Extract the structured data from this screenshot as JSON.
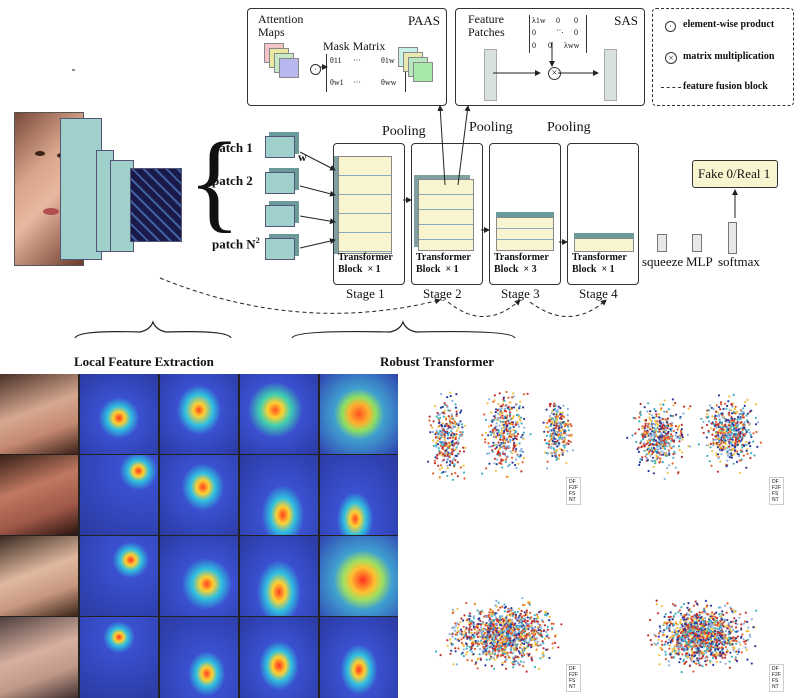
{
  "paas": {
    "title": "PAAS",
    "attention_label": "Attention\nMaps",
    "mask_label": "Mask Matrix",
    "m11": "θ11",
    "m1w": "θ1w",
    "mw1": "θw1",
    "mww": "θww",
    "dots": "···"
  },
  "sas": {
    "title": "SAS",
    "feature_label": "Feature\nPatches",
    "l1": "λ1w",
    "lw": "λww",
    "z": "0"
  },
  "legend_box": {
    "elementwise": "element-wise product",
    "matmul": "matrix multiplication",
    "fusion": "feature fusion block"
  },
  "patches": {
    "p1": "patch  1",
    "p2": "patch  2",
    "pn": "patch  N",
    "sup": "2",
    "w": "w"
  },
  "pooling": [
    "Pooling",
    "Pooling",
    "Pooling"
  ],
  "stages": [
    {
      "block": "Transformer\nBlock  × 1",
      "label": "Stage 1"
    },
    {
      "block": "Transformer\nBlock  × 1",
      "label": "Stage 2"
    },
    {
      "block": "Transformer\nBlock  × 3",
      "label": "Stage 3"
    },
    {
      "block": "Transformer\nBlock  × 1",
      "label": "Stage 4"
    }
  ],
  "head": {
    "squeeze": "squeeze",
    "mlp": "MLP",
    "softmax": "softmax",
    "output": "Fake 0/Real 1"
  },
  "sections": {
    "local": "Local Feature Extraction",
    "robust": "Robust  Transformer"
  },
  "tsne_legend": [
    "DF",
    "F2F",
    "FS",
    "NT"
  ],
  "colors": {
    "box_fill": "#f8f4d0",
    "cube_side": "#7fb8b8",
    "cube_top": "#5a8a8a",
    "accent": "#222"
  }
}
